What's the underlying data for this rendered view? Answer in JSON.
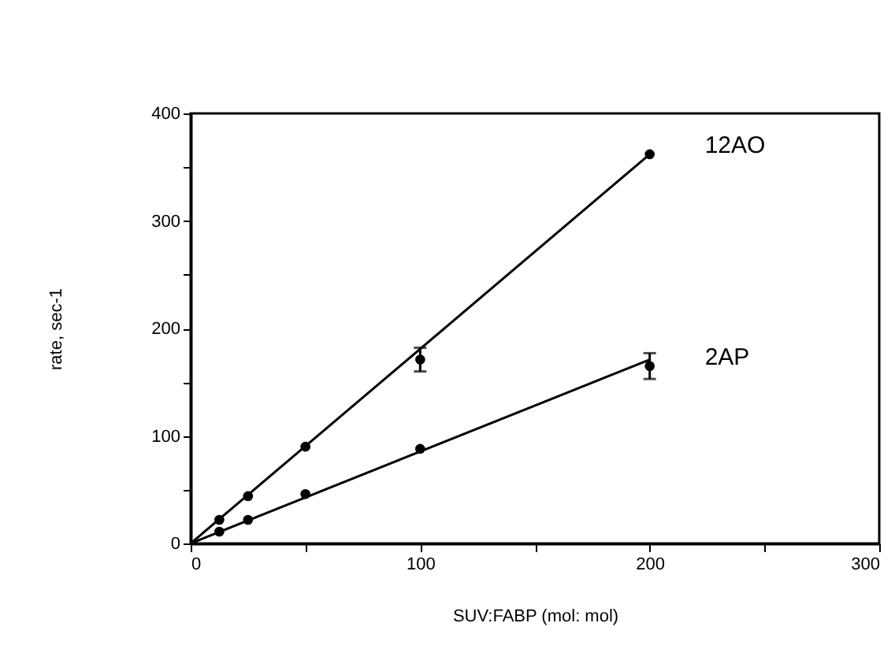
{
  "chart_data": {
    "type": "scatter",
    "xlabel": "SUV:FABP (mol: mol)",
    "ylabel": "rate,  sec-1",
    "xlim": [
      0,
      300
    ],
    "ylim": [
      0,
      400
    ],
    "xticks": [
      0,
      {
        "value": 50,
        "label": null
      },
      100,
      {
        "value": 150,
        "label": null
      },
      200,
      {
        "value": 250,
        "label": null
      },
      300
    ],
    "yticks": [
      0,
      {
        "value": 50,
        "label": null
      },
      100,
      {
        "value": 150,
        "label": null
      },
      200,
      {
        "value": 250,
        "label": null
      },
      300,
      {
        "value": 350,
        "label": null
      },
      400
    ],
    "grid": false,
    "legend": false,
    "marker": "circle",
    "series": [
      {
        "name": "12AO",
        "color": "#000000",
        "x": [
          12.5,
          25,
          50,
          100,
          200
        ],
        "values": [
          22,
          44,
          90,
          171,
          362
        ],
        "errors": [
          null,
          null,
          null,
          11,
          null
        ]
      },
      {
        "name": "2AP",
        "color": "#000000",
        "x": [
          12.5,
          25,
          50,
          100,
          200
        ],
        "values": [
          11,
          22,
          46,
          88,
          165
        ],
        "errors": [
          null,
          null,
          null,
          null,
          12
        ]
      },
      {
        "type": "line",
        "color": "#000000",
        "line_style": "solid",
        "marker": "none",
        "x": [
          0,
          200
        ],
        "values": [
          0,
          362
        ]
      },
      {
        "type": "line",
        "color": "#000000",
        "line_style": "solid",
        "marker": "none",
        "x": [
          0,
          200
        ],
        "values": [
          0,
          171
        ]
      }
    ]
  }
}
